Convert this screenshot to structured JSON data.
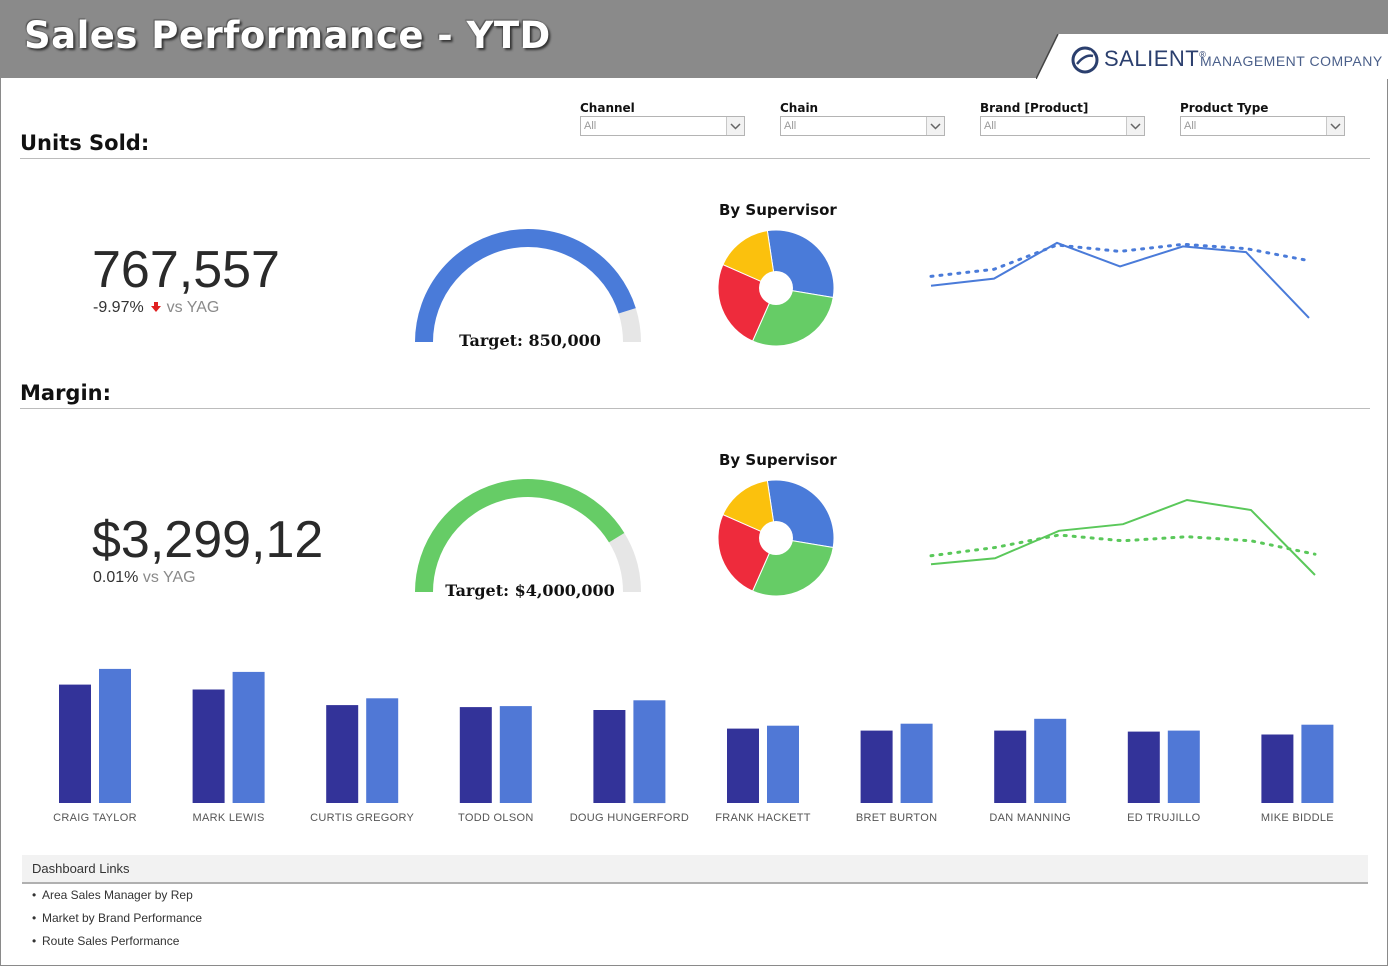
{
  "header": {
    "title": "Sales Performance - YTD"
  },
  "logo": {
    "name": "SALIENT",
    "trademark": "®",
    "tagline": "MANAGEMENT COMPANY"
  },
  "filters": [
    {
      "label": "Channel",
      "value": "All"
    },
    {
      "label": "Chain",
      "value": "All"
    },
    {
      "label": "Brand [Product]",
      "value": "All"
    },
    {
      "label": "Product Type",
      "value": "All"
    }
  ],
  "units": {
    "section_title": "Units Sold:",
    "kpi_value": "767,557",
    "kpi_delta": "-9.97%",
    "kpi_vs": "vs YAG",
    "trend": "down",
    "gauge_label": "Target: 850,000",
    "gauge_fraction": 0.903,
    "gauge_color": "#4a7bd9",
    "pie_title": "By Supervisor"
  },
  "margin": {
    "section_title": "Margin:",
    "kpi_value": "$3,299,12",
    "kpi_delta": "0.01%",
    "kpi_vs": "vs YAG",
    "gauge_label": "Target: $4,000,000",
    "gauge_fraction": 0.825,
    "gauge_color": "#66cc66",
    "pie_title": "By Supervisor"
  },
  "colors": {
    "dark_bar": "#333399",
    "light_bar": "#5078d6",
    "down_arrow": "#e02020",
    "gauge_track": "#e6e6e6"
  },
  "chart_data": [
    {
      "type": "pie",
      "title": "By Supervisor",
      "values": [
        30,
        29,
        25,
        16
      ],
      "colors": [
        "#4a7bd9",
        "#66cc66",
        "#ee2b3c",
        "#fbc10d"
      ]
    },
    {
      "type": "line",
      "series": [
        {
          "values": [
            0.15,
            0.25,
            0.75,
            0.42,
            0.7,
            0.62,
            -0.3
          ],
          "style": "solid",
          "color": "#4a7bd9"
        },
        {
          "values": [
            0.28,
            0.38,
            0.72,
            0.63,
            0.73,
            0.67,
            0.5
          ],
          "style": "dotted",
          "color": "#4a7bd9"
        }
      ],
      "ylim": [
        -0.4,
        1
      ]
    },
    {
      "type": "pie",
      "title": "By Supervisor",
      "values": [
        30,
        29,
        25,
        16
      ],
      "colors": [
        "#4a7bd9",
        "#66cc66",
        "#ee2b3c",
        "#fbc10d"
      ]
    },
    {
      "type": "line",
      "series": [
        {
          "values": [
            0.05,
            0.12,
            0.45,
            0.53,
            0.82,
            0.7,
            -0.08
          ],
          "style": "solid",
          "color": "#5ac85a"
        },
        {
          "values": [
            0.15,
            0.25,
            0.4,
            0.33,
            0.38,
            0.33,
            0.17
          ],
          "style": "dotted",
          "color": "#5ac85a"
        }
      ],
      "ylim": [
        -0.2,
        1
      ]
    },
    {
      "type": "bar",
      "categories": [
        "CRAIG TAYLOR",
        "MARK LEWIS",
        "CURTIS GREGORY",
        "TODD OLSON",
        "DOUG HUNGERFORD",
        "FRANK HACKETT",
        "BRET BURTON",
        "DAN MANNING",
        "ED TRUJILLO",
        "MIKE BIDDLE"
      ],
      "series": [
        {
          "values": [
            121,
            116,
            100,
            98,
            95,
            76,
            74,
            74,
            73,
            70
          ]
        },
        {
          "values": [
            137,
            134,
            107,
            99,
            105,
            79,
            81,
            86,
            74,
            80
          ]
        }
      ],
      "ylim": [
        0,
        140
      ]
    }
  ],
  "links": {
    "title": "Dashboard Links",
    "items": [
      "Area Sales Manager by Rep",
      "Market by Brand Performance",
      "Route Sales Performance"
    ]
  }
}
